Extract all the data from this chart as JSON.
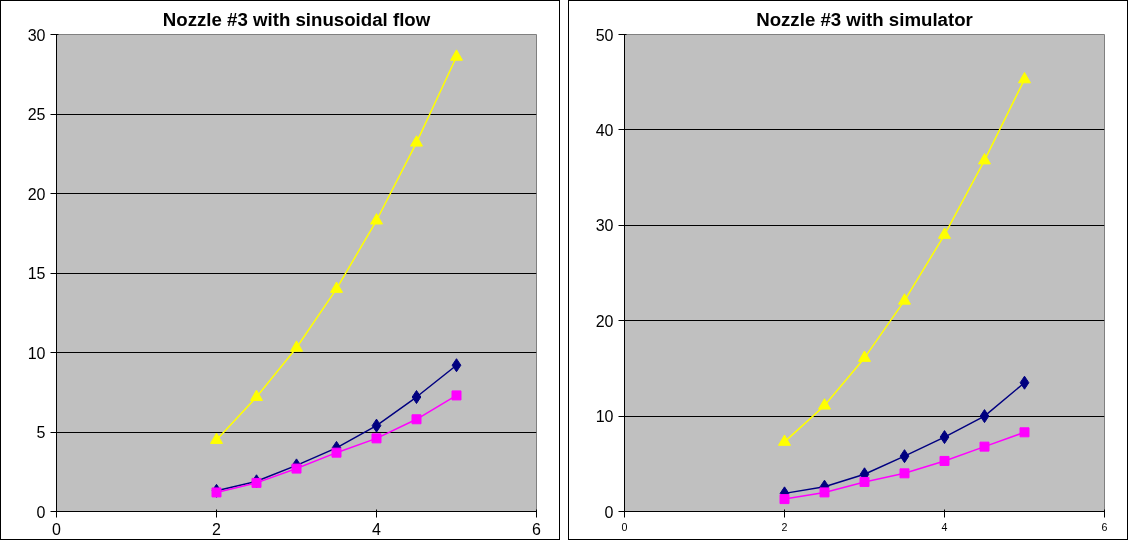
{
  "chart_data": [
    {
      "type": "line",
      "title": "Nozzle #3 with sinusoidal flow",
      "x": [
        2,
        2.5,
        3,
        3.5,
        4,
        4.5,
        5
      ],
      "xlim": [
        0,
        6
      ],
      "xticks": [
        0,
        2,
        4,
        6
      ],
      "ylim": [
        0,
        30
      ],
      "yticks": [
        0,
        5,
        10,
        15,
        20,
        25,
        30
      ],
      "grid": "y",
      "series": [
        {
          "color": "#000080",
          "marker": "diamond",
          "values": [
            1.3,
            1.9,
            2.9,
            4.0,
            5.4,
            7.2,
            9.2
          ]
        },
        {
          "color": "#ff00ff",
          "marker": "square",
          "values": [
            1.2,
            1.8,
            2.7,
            3.7,
            4.6,
            5.8,
            7.3
          ]
        },
        {
          "color": "#ffff00",
          "marker": "triangle",
          "values": [
            4.5,
            7.2,
            10.3,
            14.0,
            18.3,
            23.2,
            28.6
          ]
        }
      ]
    },
    {
      "type": "line",
      "title": "Nozzle #3 with simulator",
      "x": [
        2,
        2.5,
        3,
        3.5,
        4,
        4.5,
        5
      ],
      "xlim": [
        0,
        6
      ],
      "xticks": [
        0,
        2,
        4,
        6
      ],
      "ylim": [
        0,
        50
      ],
      "yticks": [
        0,
        10,
        20,
        30,
        40,
        50
      ],
      "grid": "y",
      "series": [
        {
          "color": "#000080",
          "marker": "diamond",
          "values": [
            1.9,
            2.6,
            3.9,
            5.8,
            7.8,
            10.0,
            13.5
          ]
        },
        {
          "color": "#ff00ff",
          "marker": "square",
          "values": [
            1.3,
            2.0,
            3.1,
            4.0,
            5.3,
            6.8,
            8.3
          ]
        },
        {
          "color": "#ffff00",
          "marker": "triangle",
          "values": [
            7.3,
            11.1,
            16.1,
            22.1,
            29.0,
            36.8,
            45.3
          ]
        }
      ]
    }
  ]
}
